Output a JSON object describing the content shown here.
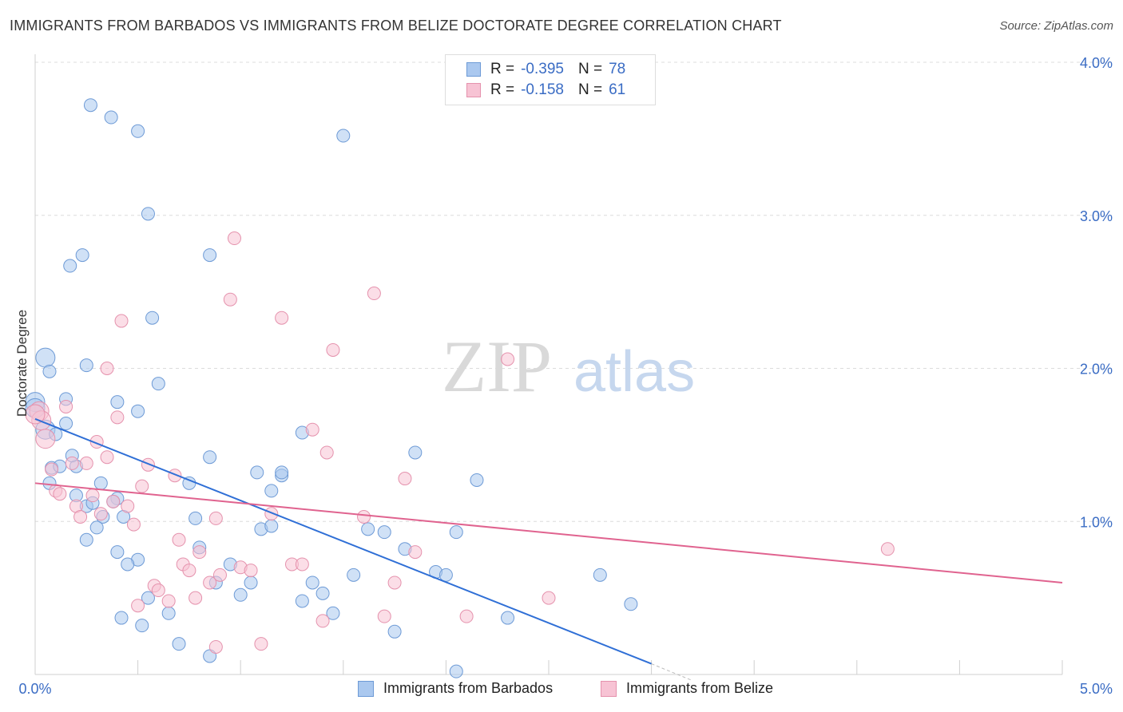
{
  "header": {
    "title": "IMMIGRANTS FROM BARBADOS VS IMMIGRANTS FROM BELIZE DOCTORATE DEGREE CORRELATION CHART",
    "source": "Source: ZipAtlas.com"
  },
  "watermark": {
    "part1": "ZIP",
    "part2": "atlas"
  },
  "stats_legend": [
    {
      "r_label": "R =",
      "r_value": "-0.395",
      "n_label": "N =",
      "n_value": "78",
      "color": "#aac8ef",
      "stroke": "#6d9ad6"
    },
    {
      "r_label": "R =",
      "r_value": "-0.158",
      "n_label": "N =",
      "n_value": "61",
      "color": "#f7c3d4",
      "stroke": "#e592ad"
    }
  ],
  "chart_data": {
    "type": "scatter",
    "ylabel": "Doctorate Degree",
    "xlim": [
      0,
      5
    ],
    "ylim": [
      0,
      4
    ],
    "x_tick_labels": [
      "0.0%",
      "5.0%"
    ],
    "y_tick_labels": [
      {
        "value": 1,
        "label": "1.0%"
      },
      {
        "value": 2,
        "label": "2.0%"
      },
      {
        "value": 3,
        "label": "3.0%"
      },
      {
        "value": 4,
        "label": "4.0%"
      }
    ],
    "grid": true,
    "series": [
      {
        "name": "Immigrants from Barbados",
        "color": "#aac8ef",
        "stroke": "#6d9ad6",
        "line_color": "#2f6fd6",
        "trend": {
          "x1": 0.0,
          "y1": 1.67,
          "x2": 3.0,
          "y2": 0.07,
          "dash_to": [
            3.2,
            -0.04
          ]
        },
        "points": [
          [
            0.0,
            1.78
          ],
          [
            0.0,
            1.74
          ],
          [
            0.05,
            1.6
          ],
          [
            0.05,
            2.07
          ],
          [
            0.07,
            1.98
          ],
          [
            0.1,
            1.57
          ],
          [
            0.15,
            1.8
          ],
          [
            0.15,
            1.64
          ],
          [
            0.08,
            1.35
          ],
          [
            0.12,
            1.36
          ],
          [
            0.07,
            1.25
          ],
          [
            0.2,
            1.36
          ],
          [
            0.18,
            1.43
          ],
          [
            0.2,
            1.17
          ],
          [
            0.25,
            1.1
          ],
          [
            0.28,
            1.12
          ],
          [
            0.33,
            1.03
          ],
          [
            0.3,
            0.96
          ],
          [
            0.25,
            0.88
          ],
          [
            0.4,
            1.15
          ],
          [
            0.43,
            1.03
          ],
          [
            0.38,
            1.13
          ],
          [
            0.32,
            1.25
          ],
          [
            0.4,
            0.8
          ],
          [
            0.5,
            0.75
          ],
          [
            0.45,
            0.72
          ],
          [
            0.42,
            0.37
          ],
          [
            0.52,
            0.32
          ],
          [
            0.55,
            0.5
          ],
          [
            0.65,
            0.4
          ],
          [
            0.7,
            0.2
          ],
          [
            0.75,
            1.25
          ],
          [
            0.78,
            1.02
          ],
          [
            0.8,
            0.83
          ],
          [
            0.85,
            1.42
          ],
          [
            0.88,
            0.6
          ],
          [
            0.95,
            0.72
          ],
          [
            1.0,
            0.52
          ],
          [
            1.05,
            0.6
          ],
          [
            1.1,
            0.95
          ],
          [
            1.15,
            0.97
          ],
          [
            1.2,
            1.3
          ],
          [
            1.3,
            0.48
          ],
          [
            1.35,
            0.6
          ],
          [
            1.4,
            0.53
          ],
          [
            1.45,
            0.4
          ],
          [
            1.55,
            0.65
          ],
          [
            1.62,
            0.95
          ],
          [
            1.7,
            0.93
          ],
          [
            1.75,
            0.28
          ],
          [
            1.8,
            0.82
          ],
          [
            1.85,
            1.45
          ],
          [
            1.95,
            0.67
          ],
          [
            2.0,
            0.65
          ],
          [
            2.05,
            0.93
          ],
          [
            2.15,
            1.27
          ],
          [
            2.3,
            0.37
          ],
          [
            2.75,
            0.65
          ],
          [
            2.9,
            0.46
          ],
          [
            2.05,
            0.02
          ],
          [
            0.27,
            3.72
          ],
          [
            0.37,
            3.64
          ],
          [
            0.5,
            3.55
          ],
          [
            0.55,
            3.01
          ],
          [
            0.17,
            2.67
          ],
          [
            0.23,
            2.74
          ],
          [
            0.57,
            2.33
          ],
          [
            0.25,
            2.02
          ],
          [
            0.6,
            1.9
          ],
          [
            0.4,
            1.78
          ],
          [
            0.5,
            1.72
          ],
          [
            0.85,
            2.74
          ],
          [
            1.15,
            1.2
          ],
          [
            1.08,
            1.32
          ],
          [
            1.2,
            1.32
          ],
          [
            1.3,
            1.58
          ],
          [
            0.85,
            0.12
          ],
          [
            1.5,
            3.52
          ]
        ]
      },
      {
        "name": "Immigrants from Belize",
        "color": "#f7c3d4",
        "stroke": "#e592ad",
        "line_color": "#e0638f",
        "trend": {
          "x1": 0.0,
          "y1": 1.25,
          "x2": 5.0,
          "y2": 0.6
        },
        "points": [
          [
            0.02,
            1.72
          ],
          [
            0.03,
            1.66
          ],
          [
            0.05,
            1.54
          ],
          [
            0.08,
            1.34
          ],
          [
            0.1,
            1.2
          ],
          [
            0.12,
            1.18
          ],
          [
            0.15,
            1.75
          ],
          [
            0.18,
            1.38
          ],
          [
            0.2,
            1.1
          ],
          [
            0.22,
            1.03
          ],
          [
            0.25,
            1.38
          ],
          [
            0.28,
            1.17
          ],
          [
            0.3,
            1.52
          ],
          [
            0.32,
            1.05
          ],
          [
            0.35,
            2.0
          ],
          [
            0.38,
            1.13
          ],
          [
            0.4,
            1.68
          ],
          [
            0.42,
            2.31
          ],
          [
            0.45,
            1.1
          ],
          [
            0.48,
            0.98
          ],
          [
            0.5,
            0.45
          ],
          [
            0.52,
            1.23
          ],
          [
            0.55,
            1.37
          ],
          [
            0.58,
            0.58
          ],
          [
            0.6,
            0.55
          ],
          [
            0.65,
            0.48
          ],
          [
            0.68,
            1.3
          ],
          [
            0.7,
            0.88
          ],
          [
            0.72,
            0.72
          ],
          [
            0.75,
            0.68
          ],
          [
            0.78,
            0.5
          ],
          [
            0.8,
            0.8
          ],
          [
            0.85,
            0.6
          ],
          [
            0.88,
            1.02
          ],
          [
            0.9,
            0.65
          ],
          [
            0.95,
            2.45
          ],
          [
            0.97,
            2.85
          ],
          [
            1.0,
            0.7
          ],
          [
            1.05,
            0.68
          ],
          [
            1.1,
            0.2
          ],
          [
            1.15,
            1.05
          ],
          [
            1.2,
            2.33
          ],
          [
            1.25,
            0.72
          ],
          [
            1.3,
            0.72
          ],
          [
            1.35,
            1.6
          ],
          [
            1.4,
            0.35
          ],
          [
            1.42,
            1.45
          ],
          [
            1.45,
            2.12
          ],
          [
            1.6,
            1.03
          ],
          [
            1.65,
            2.49
          ],
          [
            1.7,
            0.38
          ],
          [
            1.75,
            0.6
          ],
          [
            1.8,
            1.28
          ],
          [
            1.85,
            0.8
          ],
          [
            2.1,
            0.38
          ],
          [
            2.3,
            2.06
          ],
          [
            2.5,
            0.5
          ],
          [
            4.15,
            0.82
          ],
          [
            0.88,
            0.18
          ],
          [
            0.35,
            1.42
          ],
          [
            0.0,
            1.7
          ]
        ]
      }
    ]
  }
}
